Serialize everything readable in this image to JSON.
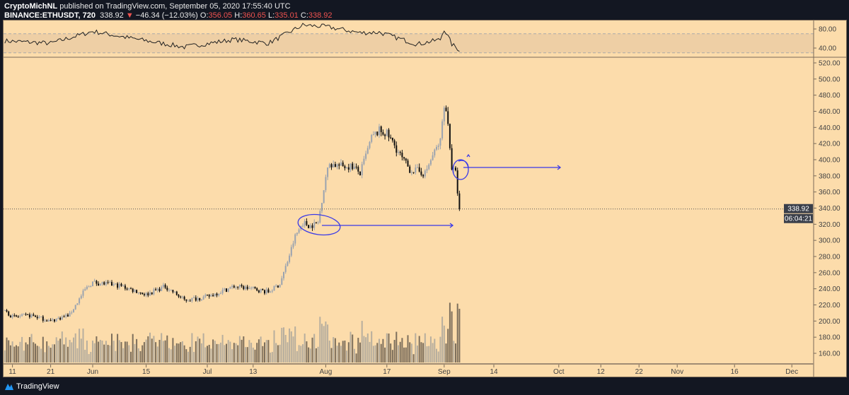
{
  "header": {
    "author": "CryptoMichNL",
    "published": "published on TradingView.com, September 05, 2020 17:55:40 UTC",
    "symbol": "BINANCE:ETHUSDT, 720",
    "last": "338.92",
    "change": "−46.34 (−12.03%)",
    "o_label": "O:",
    "o": "356.05",
    "h_label": "H:",
    "h": "360.65",
    "l_label": "L:",
    "l": "335.01",
    "c_label": "C:",
    "c": "338.92"
  },
  "colors": {
    "background": "#fcdcab",
    "up": "#9aa3b0",
    "down": "#111111",
    "annotation": "#3a3ae8",
    "text_red": "#ef5350"
  },
  "price_tag": {
    "value": "338.92",
    "countdown": "06:04:21"
  },
  "footer": {
    "brand": "TradingView"
  },
  "chart_data": {
    "type": "candlestick",
    "interval": "720",
    "price_axis": {
      "ticks": [
        "520.00",
        "500.00",
        "480.00",
        "460.00",
        "440.00",
        "420.00",
        "400.00",
        "380.00",
        "360.00",
        "340.00",
        "320.00",
        "300.00",
        "280.00",
        "260.00",
        "240.00",
        "220.00",
        "200.00",
        "180.00",
        "160.00"
      ],
      "range": [
        150,
        528
      ]
    },
    "rsi_axis": {
      "ticks": [
        "80.00",
        "40.00"
      ],
      "band": [
        30,
        70
      ]
    },
    "time_axis": [
      {
        "label": "11",
        "date": "2020-05-11"
      },
      {
        "label": "21",
        "date": "2020-05-21"
      },
      {
        "label": "Jun",
        "date": "2020-06-01"
      },
      {
        "label": "15",
        "date": "2020-06-15"
      },
      {
        "label": "Jul",
        "date": "2020-07-01"
      },
      {
        "label": "13",
        "date": "2020-07-13"
      },
      {
        "label": "Aug",
        "date": "2020-08-01"
      },
      {
        "label": "17",
        "date": "2020-08-17"
      },
      {
        "label": "Sep",
        "date": "2020-09-01"
      },
      {
        "label": "14",
        "date": "2020-09-14"
      },
      {
        "label": "Oct",
        "date": "2020-10-01"
      },
      {
        "label": "12",
        "date": "2020-10-12"
      },
      {
        "label": "22",
        "date": "2020-10-22"
      },
      {
        "label": "Nov",
        "date": "2020-11-01"
      },
      {
        "label": "16",
        "date": "2020-11-16"
      },
      {
        "label": "Dec",
        "date": "2020-12-01"
      }
    ],
    "close_anchors": [
      [
        "2020-05-09",
        213
      ],
      [
        "2020-05-11",
        205
      ],
      [
        "2020-05-16",
        207
      ],
      [
        "2020-05-21",
        200
      ],
      [
        "2020-05-26",
        208
      ],
      [
        "2020-05-30",
        239
      ],
      [
        "2020-06-01",
        248
      ],
      [
        "2020-06-08",
        244
      ],
      [
        "2020-06-15",
        233
      ],
      [
        "2020-06-20",
        243
      ],
      [
        "2020-06-25",
        226
      ],
      [
        "2020-07-01",
        230
      ],
      [
        "2020-07-08",
        243
      ],
      [
        "2020-07-13",
        240
      ],
      [
        "2020-07-17",
        236
      ],
      [
        "2020-07-20",
        246
      ],
      [
        "2020-07-22",
        274
      ],
      [
        "2020-07-24",
        305
      ],
      [
        "2020-07-26",
        322
      ],
      [
        "2020-07-28",
        318
      ],
      [
        "2020-07-30",
        322
      ],
      [
        "2020-08-01",
        379
      ],
      [
        "2020-08-02",
        395
      ],
      [
        "2020-08-05",
        392
      ],
      [
        "2020-08-08",
        392
      ],
      [
        "2020-08-10",
        383
      ],
      [
        "2020-08-13",
        427
      ],
      [
        "2020-08-15",
        436
      ],
      [
        "2020-08-17",
        432
      ],
      [
        "2020-08-19",
        418
      ],
      [
        "2020-08-21",
        401
      ],
      [
        "2020-08-23",
        388
      ],
      [
        "2020-08-25",
        386
      ],
      [
        "2020-08-27",
        383
      ],
      [
        "2020-08-29",
        405
      ],
      [
        "2020-08-31",
        423
      ],
      [
        "2020-09-01",
        470
      ],
      [
        "2020-09-02",
        445
      ],
      [
        "2020-09-03",
        390
      ],
      [
        "2020-09-04",
        383
      ],
      [
        "2020-09-05",
        338.92
      ]
    ],
    "rsi_anchors": [
      [
        "2020-05-09",
        55
      ],
      [
        "2020-05-21",
        50
      ],
      [
        "2020-06-01",
        75
      ],
      [
        "2020-06-10",
        62
      ],
      [
        "2020-06-25",
        42
      ],
      [
        "2020-07-08",
        58
      ],
      [
        "2020-07-17",
        50
      ],
      [
        "2020-07-26",
        88
      ],
      [
        "2020-08-01",
        85
      ],
      [
        "2020-08-10",
        72
      ],
      [
        "2020-08-15",
        73
      ],
      [
        "2020-08-25",
        48
      ],
      [
        "2020-08-31",
        58
      ],
      [
        "2020-09-01",
        80
      ],
      [
        "2020-09-03",
        48
      ],
      [
        "2020-09-05",
        36
      ]
    ]
  }
}
